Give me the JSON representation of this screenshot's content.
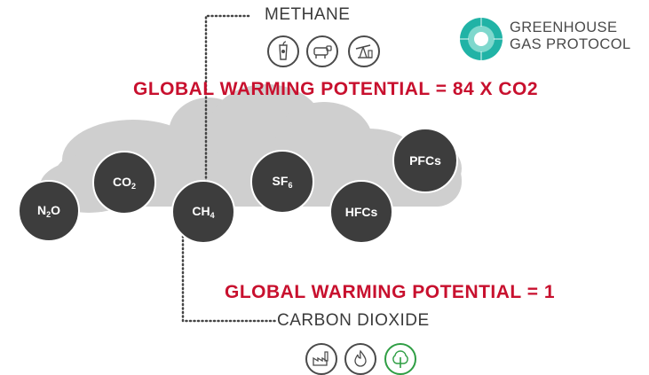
{
  "labels": {
    "methane": "METHANE",
    "carbon_dioxide": "CARBON DIOXIDE",
    "gwp_methane": "GLOBAL WARMING POTENTIAL = 84 X CO2",
    "gwp_co2": "GLOBAL WARMING POTENTIAL = 1"
  },
  "logo": {
    "line1": "GREENHOUSE",
    "line2": "GAS PROTOCOL"
  },
  "gases": {
    "n2o": {
      "a": "N",
      "sub": "2",
      "b": "O"
    },
    "co2": {
      "a": "CO",
      "sub": "2",
      "b": ""
    },
    "ch4": {
      "a": "CH",
      "sub": "4",
      "b": ""
    },
    "sf6": {
      "a": "SF",
      "sub": "6",
      "b": ""
    },
    "hfcs": {
      "a": "HFCs",
      "sub": "",
      "b": ""
    },
    "pfcs": {
      "a": "PFCs",
      "sub": "",
      "b": ""
    }
  },
  "icons": {
    "methane_sources": [
      "food-waste-icon",
      "cow-icon",
      "oil-pump-icon"
    ],
    "co2_sources": [
      "factory-icon",
      "fire-icon",
      "tree-icon"
    ]
  },
  "colors": {
    "accent_red": "#c8102e",
    "gas_circle": "#3d3d3d",
    "cloud": "#cfcfcf",
    "logo_teal": "#21b3a6",
    "tree_green": "#2f9e44"
  }
}
